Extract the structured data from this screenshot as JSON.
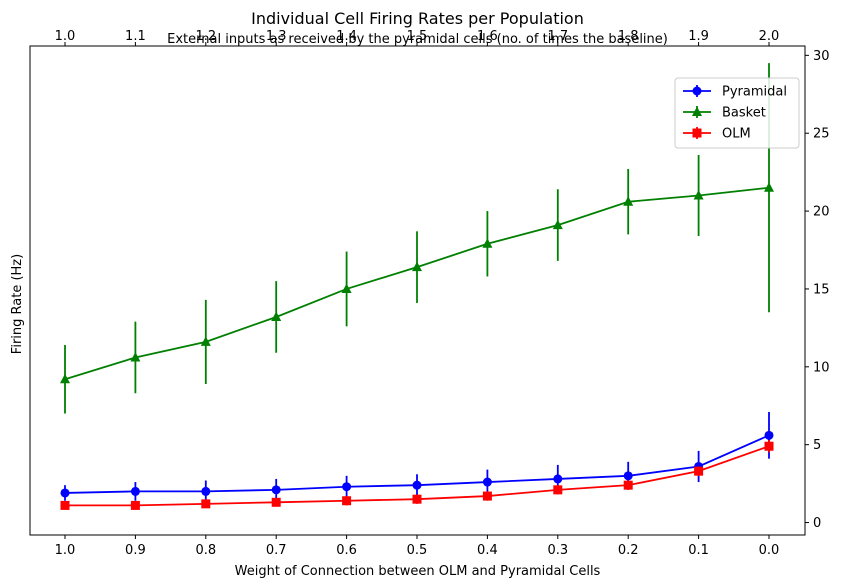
{
  "chart_data": {
    "type": "line",
    "title": "Individual Cell Firing Rates per Population",
    "xlabel": "Weight of Connection between OLM and Pyramidal Cells",
    "x_top_label": "External inputs as received by the pyramidal cells (no. of times the baseline)",
    "ylabel": "Firing Rate (Hz)",
    "x_categories": [
      "1.0",
      "0.9",
      "0.8",
      "0.7",
      "0.6",
      "0.5",
      "0.4",
      "0.3",
      "0.2",
      "0.1",
      "0.0"
    ],
    "x_top_categories": [
      "1.0",
      "1.1",
      "1.2",
      "1.3",
      "1.4",
      "1.5",
      "1.6",
      "1.7",
      "1.8",
      "1.9",
      "2.0"
    ],
    "y_axis_side": "right",
    "ylim": [
      -0.8,
      30.6
    ],
    "yticks": [
      0,
      5,
      10,
      15,
      20,
      25,
      30
    ],
    "grid": false,
    "legend_position": "top-right",
    "series": [
      {
        "name": "Pyramidal",
        "color": "#0000ff",
        "marker": "circle",
        "values": [
          1.9,
          2.0,
          2.0,
          2.1,
          2.3,
          2.4,
          2.6,
          2.8,
          3.0,
          3.6,
          5.6
        ],
        "errors": [
          0.5,
          0.6,
          0.7,
          0.7,
          0.7,
          0.7,
          0.8,
          0.9,
          0.9,
          1.0,
          1.5
        ]
      },
      {
        "name": "Basket",
        "color": "#008000",
        "marker": "triangle",
        "values": [
          9.2,
          10.6,
          11.6,
          13.2,
          15.0,
          16.4,
          17.9,
          19.1,
          20.6,
          21.0,
          21.5
        ],
        "errors": [
          2.2,
          2.3,
          2.7,
          2.3,
          2.4,
          2.3,
          2.1,
          2.3,
          2.1,
          2.6,
          8.0
        ]
      },
      {
        "name": "OLM",
        "color": "#ff0000",
        "marker": "square",
        "values": [
          1.1,
          1.1,
          1.2,
          1.3,
          1.4,
          1.5,
          1.7,
          2.1,
          2.4,
          3.3,
          4.9
        ],
        "errors": [
          0.2,
          0.2,
          0.2,
          0.2,
          0.3,
          0.3,
          0.3,
          0.3,
          0.3,
          0.3,
          0.4
        ]
      }
    ]
  }
}
